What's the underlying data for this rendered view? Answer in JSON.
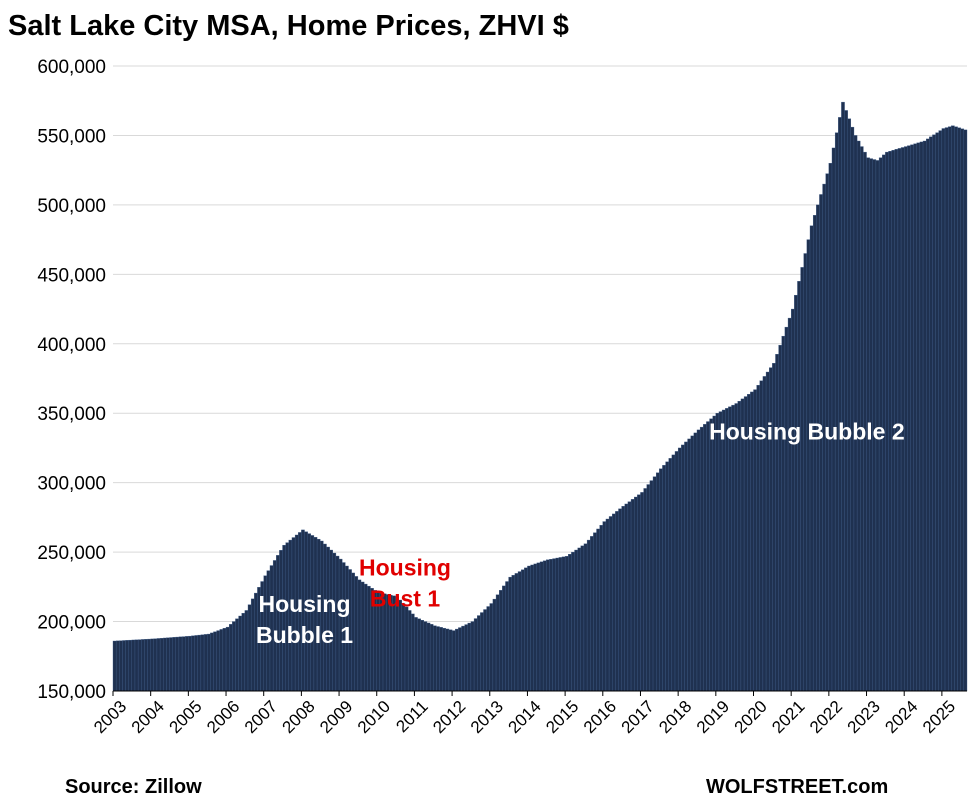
{
  "chart_data": {
    "type": "bar",
    "title": "Salt Lake City MSA, Home Prices, ZHVI $",
    "xlabel": "",
    "ylabel": "",
    "ylim": [
      150000,
      600000
    ],
    "yticks": [
      "150,000",
      "200,000",
      "250,000",
      "300,000",
      "350,000",
      "400,000",
      "450,000",
      "500,000",
      "550,000",
      "600,000"
    ],
    "xticks": [
      "2003",
      "2004",
      "2005",
      "2006",
      "2007",
      "2008",
      "2009",
      "2010",
      "2011",
      "2012",
      "2013",
      "2014",
      "2015",
      "2016",
      "2017",
      "2018",
      "2019",
      "2020",
      "2021",
      "2022",
      "2023",
      "2024",
      "2025"
    ],
    "grid": true,
    "legend": "none",
    "colors": {
      "bar": "#1f3150",
      "bar_edge": "#3d5a86",
      "grid": "#d9d9d9",
      "annot_white": "#ffffff",
      "annot_red": "#e00000"
    },
    "frequency": "monthly",
    "x_start": "2003-01",
    "x_end": "2025-08",
    "key_points": [
      {
        "x": "2003-01",
        "y": 186000
      },
      {
        "x": "2004-01",
        "y": 187500
      },
      {
        "x": "2005-01",
        "y": 189500
      },
      {
        "x": "2005-07",
        "y": 191000
      },
      {
        "x": "2006-01",
        "y": 196000
      },
      {
        "x": "2006-07",
        "y": 208000
      },
      {
        "x": "2007-01",
        "y": 233000
      },
      {
        "x": "2007-07",
        "y": 255000
      },
      {
        "x": "2008-01",
        "y": 266000
      },
      {
        "x": "2008-07",
        "y": 258000
      },
      {
        "x": "2009-01",
        "y": 245000
      },
      {
        "x": "2009-07",
        "y": 230000
      },
      {
        "x": "2010-01",
        "y": 221000
      },
      {
        "x": "2010-07",
        "y": 218000
      },
      {
        "x": "2011-01",
        "y": 203000
      },
      {
        "x": "2011-07",
        "y": 197000
      },
      {
        "x": "2012-01",
        "y": 193500
      },
      {
        "x": "2012-07",
        "y": 200000
      },
      {
        "x": "2013-01",
        "y": 213000
      },
      {
        "x": "2013-07",
        "y": 232000
      },
      {
        "x": "2014-01",
        "y": 240000
      },
      {
        "x": "2014-07",
        "y": 244500
      },
      {
        "x": "2015-01",
        "y": 247000
      },
      {
        "x": "2015-07",
        "y": 256000
      },
      {
        "x": "2016-01",
        "y": 272000
      },
      {
        "x": "2016-07",
        "y": 283000
      },
      {
        "x": "2017-01",
        "y": 293000
      },
      {
        "x": "2017-07",
        "y": 310000
      },
      {
        "x": "2018-01",
        "y": 325000
      },
      {
        "x": "2018-07",
        "y": 338000
      },
      {
        "x": "2019-01",
        "y": 350000
      },
      {
        "x": "2019-07",
        "y": 357000
      },
      {
        "x": "2020-01",
        "y": 367000
      },
      {
        "x": "2020-07",
        "y": 386000
      },
      {
        "x": "2021-01",
        "y": 425000
      },
      {
        "x": "2021-07",
        "y": 485000
      },
      {
        "x": "2022-01",
        "y": 530000
      },
      {
        "x": "2022-05",
        "y": 574000
      },
      {
        "x": "2022-09",
        "y": 550000
      },
      {
        "x": "2023-01",
        "y": 534000
      },
      {
        "x": "2023-04",
        "y": 532000
      },
      {
        "x": "2023-07",
        "y": 538000
      },
      {
        "x": "2024-01",
        "y": 542000
      },
      {
        "x": "2024-07",
        "y": 546000
      },
      {
        "x": "2025-01",
        "y": 555000
      },
      {
        "x": "2025-04",
        "y": 557000
      },
      {
        "x": "2025-08",
        "y": 554000
      }
    ],
    "annotations": [
      {
        "text_lines": [
          "Housing",
          "Bubble 1"
        ],
        "color": "white",
        "x": "2008-02",
        "y": 207000
      },
      {
        "text_lines": [
          "Housing",
          "Bust 1"
        ],
        "color": "red",
        "x": "2010-10",
        "y": 233000
      },
      {
        "text_lines": [
          "Housing Bubble 2"
        ],
        "color": "white",
        "x": "2021-06",
        "y": 331000
      }
    ]
  },
  "footer": {
    "source": "Source: Zillow",
    "brand": "WOLFSTREET.com"
  }
}
